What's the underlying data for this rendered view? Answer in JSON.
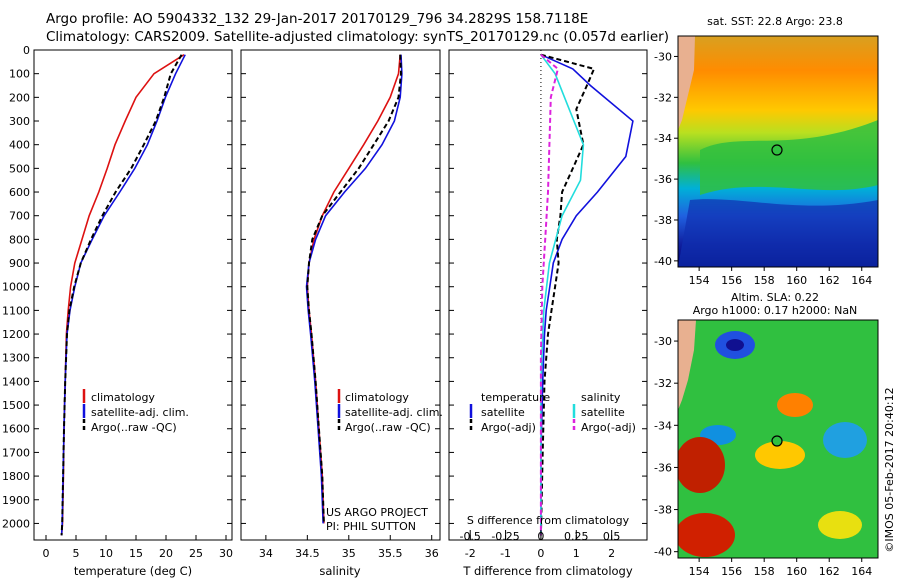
{
  "header": {
    "line1": "Argo profile: AO 5904332_132 29-Jan-2017 20170129_796 34.2829S 158.7118E",
    "line2": "Climatology: CARS2009. Satellite-adjusted climatology: synTS_20170129.nc (0.057d earlier)"
  },
  "colors": {
    "climatology": "#dd1111",
    "satellite": "#1111dd",
    "argo": "#000000",
    "salinity_satellite": "#22dddd",
    "salinity_argo": "#dd22dd"
  },
  "chart_data": [
    {
      "type": "line",
      "xlabel": "temperature (deg C)",
      "xlim": [
        -2,
        31
      ],
      "xticks": [
        0,
        5,
        10,
        15,
        20,
        25,
        30
      ],
      "ylim": [
        2070,
        0
      ],
      "yticks": [
        0,
        100,
        200,
        300,
        400,
        500,
        600,
        700,
        800,
        900,
        1000,
        1100,
        1200,
        1300,
        1400,
        1500,
        1600,
        1700,
        1800,
        1900,
        2000
      ],
      "legend": [
        "climatology",
        "satellite-adj. clim.",
        "Argo(..raw -QC)"
      ],
      "series": [
        {
          "name": "climatology",
          "style": "solid",
          "color": "#dd1111",
          "x": [
            23.0,
            18.0,
            15.0,
            13.2,
            11.5,
            10.2,
            8.8,
            7.2,
            6.0,
            4.8,
            4.1,
            3.7,
            3.4,
            3.2,
            3.0,
            2.9,
            2.75,
            2.6
          ],
          "y": [
            20,
            100,
            200,
            300,
            400,
            500,
            600,
            700,
            800,
            900,
            1000,
            1100,
            1200,
            1400,
            1600,
            1800,
            2000,
            2050
          ]
        },
        {
          "name": "satellite-adj. clim.",
          "style": "solid",
          "color": "#1111dd",
          "x": [
            23.2,
            21.6,
            19.9,
            18.5,
            16.9,
            14.8,
            12.3,
            9.7,
            7.7,
            5.8,
            4.8,
            4.0,
            3.5,
            3.2,
            3.0,
            2.85,
            2.7,
            2.6
          ],
          "y": [
            20,
            100,
            200,
            300,
            400,
            500,
            600,
            700,
            800,
            900,
            1000,
            1100,
            1200,
            1400,
            1600,
            1800,
            2000,
            2050
          ]
        },
        {
          "name": "Argo(..raw -QC)",
          "style": "dashed",
          "color": "#000000",
          "x": [
            22.6,
            20.8,
            19.7,
            18.3,
            16.3,
            14.2,
            11.6,
            9.4,
            7.5,
            5.8,
            4.7,
            3.9,
            3.5,
            3.2,
            3.0,
            2.85,
            2.7,
            2.6
          ],
          "y": [
            20,
            100,
            200,
            300,
            400,
            500,
            600,
            700,
            800,
            900,
            1000,
            1100,
            1200,
            1400,
            1600,
            1800,
            2000,
            2050
          ]
        }
      ]
    },
    {
      "type": "line",
      "xlabel": "salinity",
      "xlim": [
        33.7,
        36.1
      ],
      "xticks": [
        34,
        34.5,
        35,
        35.5,
        36
      ],
      "xticklabels": [
        "34",
        "34.5",
        "35",
        "35.5",
        "36"
      ],
      "ylim": [
        2070,
        0
      ],
      "legend": [
        "climatology",
        "satellite-adj. clim.",
        "Argo(..raw -QC)"
      ],
      "annotation": [
        "US ARGO PROJECT",
        "PI: PHIL SUTTON"
      ],
      "series": [
        {
          "name": "climatology",
          "style": "solid",
          "color": "#dd1111",
          "x": [
            35.62,
            35.6,
            35.5,
            35.35,
            35.18,
            35.0,
            34.82,
            34.68,
            34.58,
            34.52,
            34.5,
            34.52,
            34.55,
            34.6,
            34.64,
            34.68,
            34.7
          ],
          "y": [
            20,
            100,
            200,
            300,
            400,
            500,
            600,
            700,
            800,
            900,
            1000,
            1100,
            1200,
            1400,
            1600,
            1800,
            2000
          ]
        },
        {
          "name": "satellite-adj. clim.",
          "style": "solid",
          "color": "#1111dd",
          "x": [
            35.63,
            35.64,
            35.62,
            35.55,
            35.4,
            35.2,
            34.95,
            34.72,
            34.6,
            34.52,
            34.49,
            34.51,
            34.54,
            34.59,
            34.63,
            34.67,
            34.69
          ],
          "y": [
            20,
            100,
            200,
            300,
            400,
            500,
            600,
            700,
            800,
            900,
            1000,
            1100,
            1200,
            1400,
            1600,
            1800,
            2000
          ]
        },
        {
          "name": "Argo(..raw -QC)",
          "style": "dashed",
          "color": "#000000",
          "x": [
            35.62,
            35.63,
            35.6,
            35.48,
            35.3,
            35.12,
            34.9,
            34.68,
            34.56,
            34.52,
            34.5,
            34.52,
            34.55,
            34.6,
            34.64,
            34.68,
            34.7
          ],
          "y": [
            20,
            100,
            200,
            300,
            400,
            500,
            600,
            700,
            800,
            900,
            1000,
            1100,
            1200,
            1400,
            1600,
            1800,
            2000
          ]
        }
      ]
    },
    {
      "type": "line",
      "xlabel": "T difference from climatology",
      "xlim": [
        -2.6,
        3.0
      ],
      "xticks": [
        -2,
        -1,
        0,
        1,
        2
      ],
      "s_axis_label": "S difference from climatology",
      "s_ticks": [
        -0.5,
        -0.25,
        0,
        0.25,
        0.5
      ],
      "s_ticklabels": [
        "-0.5",
        "-0.25",
        "0",
        "0.25",
        "0.5"
      ],
      "ylim": [
        2070,
        0
      ],
      "legend_groups": [
        {
          "title": "temperature",
          "items": [
            "satellite",
            "Argo(-adj)"
          ]
        },
        {
          "title": "salinity",
          "items": [
            "satellite",
            "Argo(-adj)"
          ]
        }
      ],
      "series": [
        {
          "name": "temperature satellite",
          "style": "solid",
          "color": "#1111dd",
          "x": [
            0.0,
            0.9,
            1.4,
            2.6,
            2.4,
            1.6,
            1.0,
            0.6,
            0.35,
            0.25,
            0.15,
            0.1,
            0.05,
            0.0,
            0.0
          ],
          "y": [
            20,
            80,
            150,
            300,
            450,
            600,
            700,
            800,
            900,
            1000,
            1100,
            1200,
            1400,
            1700,
            2050
          ]
        },
        {
          "name": "temperature Argo(-adj)",
          "style": "dashed",
          "color": "#000000",
          "x": [
            0.0,
            1.5,
            1.3,
            1.0,
            1.2,
            0.9,
            0.6,
            0.55,
            0.45,
            0.5,
            0.4,
            0.3,
            0.2,
            0.1,
            0.05,
            0.0
          ],
          "y": [
            20,
            80,
            150,
            250,
            400,
            500,
            600,
            700,
            800,
            900,
            1000,
            1100,
            1200,
            1400,
            1700,
            2050
          ]
        },
        {
          "name": "salinity satellite",
          "style": "solid",
          "color": "#22dddd",
          "x": [
            0.0,
            0.1,
            0.2,
            0.3,
            0.28,
            0.15,
            0.06,
            0.02,
            0.0,
            0.0
          ],
          "y": [
            20,
            100,
            250,
            400,
            550,
            700,
            900,
            1100,
            1400,
            2050
          ]
        },
        {
          "name": "salinity Argo(-adj)",
          "style": "dashed",
          "color": "#dd22dd",
          "x": [
            0.0,
            0.12,
            0.07,
            0.06,
            0.05,
            0.03,
            0.01,
            0.0,
            0.0
          ],
          "y": [
            20,
            80,
            200,
            400,
            600,
            800,
            1000,
            1300,
            2050
          ]
        }
      ]
    }
  ],
  "yaxis_ticks": [
    "0",
    "100",
    "200",
    "300",
    "400",
    "500",
    "600",
    "700",
    "800",
    "900",
    "1000",
    "1100",
    "1200",
    "1300",
    "1400",
    "1500",
    "1600",
    "1700",
    "1800",
    "1900",
    "2000"
  ],
  "maps": [
    {
      "title": "sat. SST: 22.8 Argo: 23.8",
      "yticks": [
        "-30",
        "-32",
        "-34",
        "-36",
        "-38",
        "-40"
      ],
      "xticks": [
        "154",
        "156",
        "158",
        "160",
        "162",
        "164"
      ]
    },
    {
      "title_line1": "Altim. SLA: 0.22",
      "title_line2": "Argo h1000: 0.17 h2000: NaN",
      "yticks": [
        "-30",
        "-32",
        "-34",
        "-36",
        "-38",
        "-40"
      ],
      "xticks": [
        "154",
        "156",
        "158",
        "160",
        "162",
        "164"
      ]
    }
  ],
  "credit": "©IMOS 05-Feb-2017 20:40:12"
}
